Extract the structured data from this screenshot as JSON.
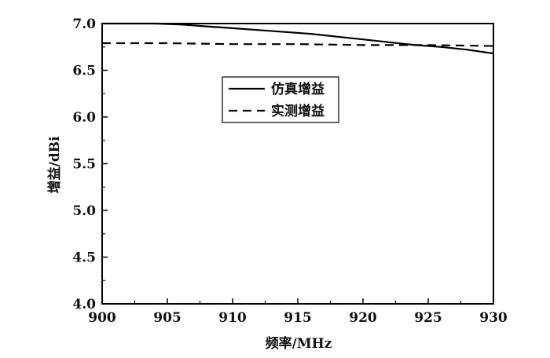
{
  "chart_data": {
    "type": "line",
    "xlabel": "频率/MHz",
    "ylabel": "增益/dBi",
    "xlim": [
      900,
      930
    ],
    "ylim": [
      4.0,
      7.0
    ],
    "xticks": [
      "900",
      "905",
      "910",
      "915",
      "920",
      "925",
      "930"
    ],
    "yticks": [
      "4.0",
      "4.5",
      "5.0",
      "5.5",
      "6.0",
      "6.5",
      "7.0"
    ],
    "grid": false,
    "legend_position": "center",
    "series": [
      {
        "name": "仿真增益",
        "style": "solid",
        "x": [
          900,
          902,
          904,
          906,
          908,
          910,
          912,
          914,
          916,
          918,
          920,
          922,
          924,
          926,
          928,
          930
        ],
        "y": [
          7.0,
          7.0,
          7.0,
          6.99,
          6.97,
          6.95,
          6.93,
          6.91,
          6.89,
          6.86,
          6.83,
          6.8,
          6.77,
          6.75,
          6.72,
          6.68
        ]
      },
      {
        "name": "实测增益",
        "style": "dashed",
        "x": [
          900,
          905,
          910,
          915,
          920,
          925,
          930
        ],
        "y": [
          6.79,
          6.79,
          6.78,
          6.78,
          6.77,
          6.77,
          6.76
        ]
      }
    ]
  }
}
